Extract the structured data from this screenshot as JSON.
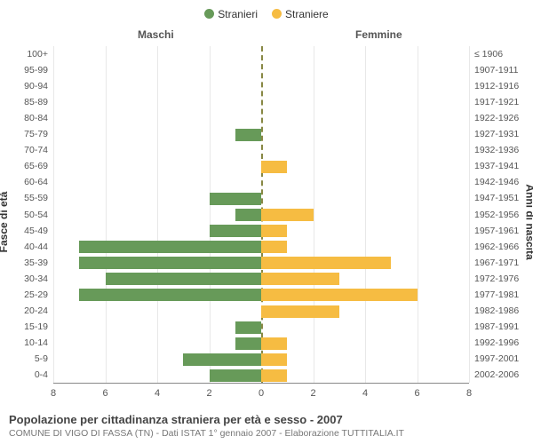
{
  "legend": {
    "items": [
      {
        "label": "Stranieri",
        "color": "#679a59"
      },
      {
        "label": "Straniere",
        "color": "#f6bc42"
      }
    ]
  },
  "columnHeaders": {
    "left": "Maschi",
    "right": "Femmine"
  },
  "yAxisTitles": {
    "left": "Fasce di età",
    "right": "Anni di nascita"
  },
  "chart": {
    "type": "population-pyramid",
    "xmax": 8,
    "xticks": [
      8,
      6,
      4,
      2,
      0,
      2,
      4,
      6,
      8
    ],
    "grid_color": "#e8e8e8",
    "centerline_color": "#888844",
    "axis_color": "#888888",
    "background_color": "#ffffff",
    "male_color": "#679a59",
    "female_color": "#f6bc42",
    "label_fontsize": 10.5,
    "tick_fontsize": 11,
    "rows": [
      {
        "ageLabel": "100+",
        "birthLabel": "≤ 1906",
        "m": 0,
        "f": 0
      },
      {
        "ageLabel": "95-99",
        "birthLabel": "1907-1911",
        "m": 0,
        "f": 0
      },
      {
        "ageLabel": "90-94",
        "birthLabel": "1912-1916",
        "m": 0,
        "f": 0
      },
      {
        "ageLabel": "85-89",
        "birthLabel": "1917-1921",
        "m": 0,
        "f": 0
      },
      {
        "ageLabel": "80-84",
        "birthLabel": "1922-1926",
        "m": 0,
        "f": 0
      },
      {
        "ageLabel": "75-79",
        "birthLabel": "1927-1931",
        "m": 1,
        "f": 0
      },
      {
        "ageLabel": "70-74",
        "birthLabel": "1932-1936",
        "m": 0,
        "f": 0
      },
      {
        "ageLabel": "65-69",
        "birthLabel": "1937-1941",
        "m": 0,
        "f": 1
      },
      {
        "ageLabel": "60-64",
        "birthLabel": "1942-1946",
        "m": 0,
        "f": 0
      },
      {
        "ageLabel": "55-59",
        "birthLabel": "1947-1951",
        "m": 2,
        "f": 0
      },
      {
        "ageLabel": "50-54",
        "birthLabel": "1952-1956",
        "m": 1,
        "f": 2
      },
      {
        "ageLabel": "45-49",
        "birthLabel": "1957-1961",
        "m": 2,
        "f": 1
      },
      {
        "ageLabel": "40-44",
        "birthLabel": "1962-1966",
        "m": 7,
        "f": 1
      },
      {
        "ageLabel": "35-39",
        "birthLabel": "1967-1971",
        "m": 7,
        "f": 5
      },
      {
        "ageLabel": "30-34",
        "birthLabel": "1972-1976",
        "m": 6,
        "f": 3
      },
      {
        "ageLabel": "25-29",
        "birthLabel": "1977-1981",
        "m": 7,
        "f": 6
      },
      {
        "ageLabel": "20-24",
        "birthLabel": "1982-1986",
        "m": 0,
        "f": 3
      },
      {
        "ageLabel": "15-19",
        "birthLabel": "1987-1991",
        "m": 1,
        "f": 0
      },
      {
        "ageLabel": "10-14",
        "birthLabel": "1992-1996",
        "m": 1,
        "f": 1
      },
      {
        "ageLabel": "5-9",
        "birthLabel": "1997-2001",
        "m": 3,
        "f": 1
      },
      {
        "ageLabel": "0-4",
        "birthLabel": "2002-2006",
        "m": 2,
        "f": 1
      }
    ]
  },
  "footer": {
    "title": "Popolazione per cittadinanza straniera per età e sesso - 2007",
    "subtitle": "COMUNE DI VIGO DI FASSA (TN) - Dati ISTAT 1° gennaio 2007 - Elaborazione TUTTITALIA.IT"
  }
}
